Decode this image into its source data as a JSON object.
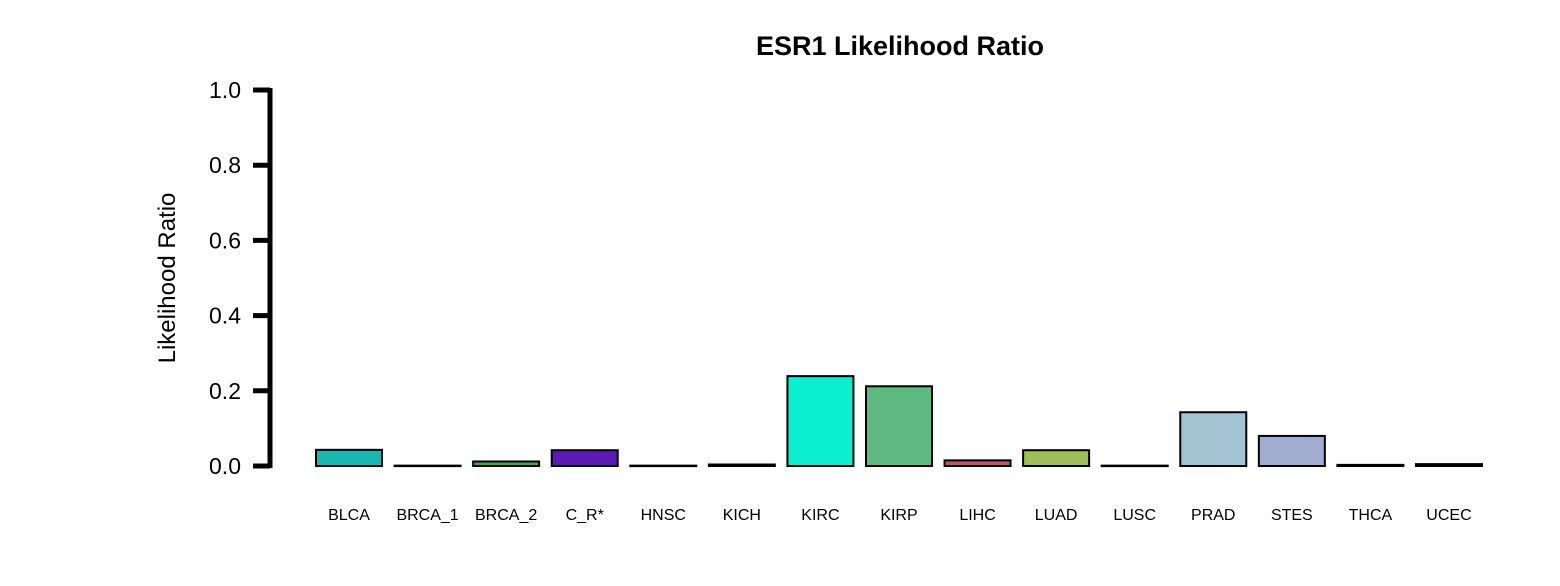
{
  "chart_data": {
    "type": "bar",
    "title": "ESR1 Likelihood Ratio",
    "xlabel": "",
    "ylabel": "Likelihood Ratio",
    "ylim": [
      0,
      1.0
    ],
    "yticks": [
      "0.0",
      "0.2",
      "0.4",
      "0.6",
      "0.8",
      "1.0"
    ],
    "grid": false,
    "legend": "none",
    "categories": [
      "BLCA",
      "BRCA_1",
      "BRCA_2",
      "C_R*",
      "HNSC",
      "KICH",
      "KIRC",
      "KIRP",
      "LIHC",
      "LUAD",
      "LUSC",
      "PRAD",
      "STES",
      "THCA",
      "UCEC"
    ],
    "values": [
      0.043,
      0.001,
      0.012,
      0.042,
      0.001,
      0.004,
      0.239,
      0.212,
      0.015,
      0.042,
      0.001,
      0.143,
      0.08,
      0.003,
      0.005
    ],
    "colors": [
      "#1BB6AF",
      "#2E2E2E",
      "#3BA55C",
      "#5A1BB5",
      "#2E2E2E",
      "#2E2E2E",
      "#0CEED0",
      "#5FBB82",
      "#B4566E",
      "#9DBE5B",
      "#2E2E2E",
      "#A2C4D3",
      "#A1ADD0",
      "#2E2E2E",
      "#2E2E2E"
    ]
  }
}
